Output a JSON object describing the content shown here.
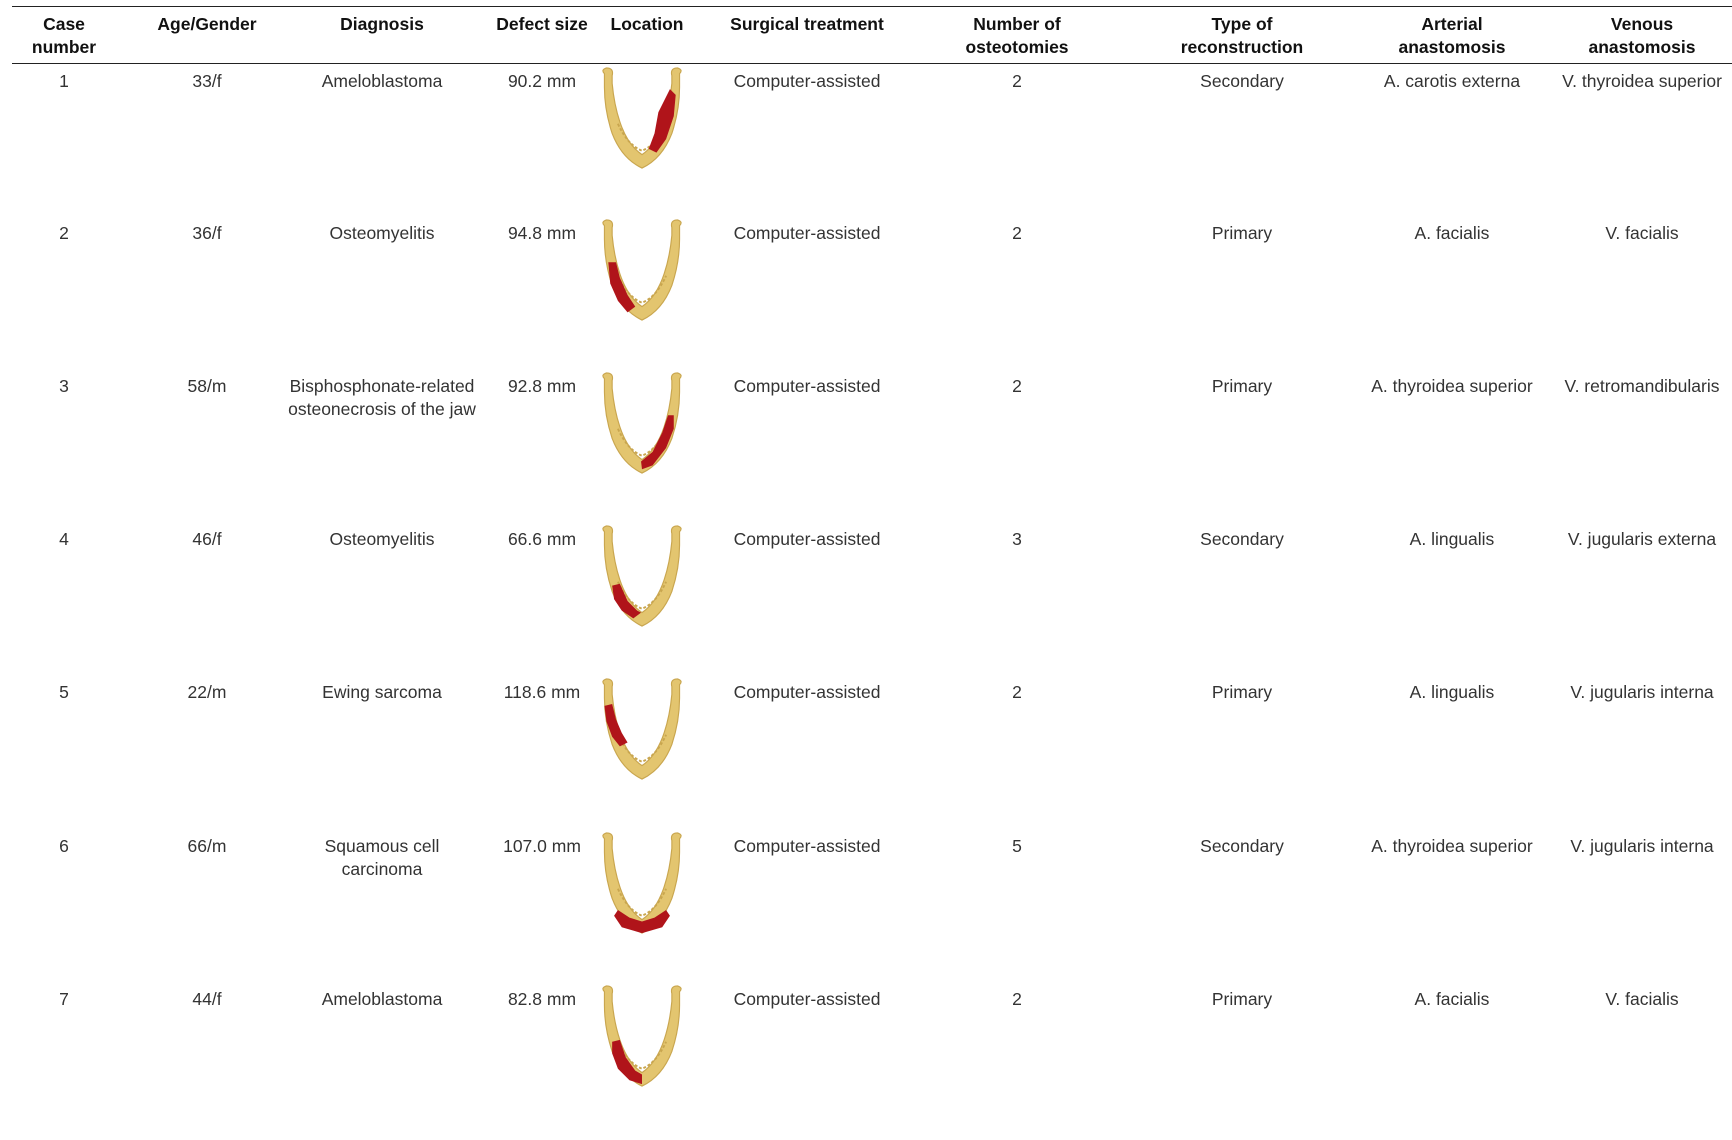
{
  "table": {
    "headers": [
      [
        "Case",
        "number"
      ],
      [
        "Age/Gender"
      ],
      [
        "Diagnosis"
      ],
      [
        "Defect size"
      ],
      [
        "Location"
      ],
      [
        "Surgical treatment"
      ],
      [
        "Number of",
        "osteotomies"
      ],
      [
        "Type of",
        "reconstruction"
      ],
      [
        "Arterial",
        "anastomosis"
      ],
      [
        "Venous",
        "anastomosis"
      ]
    ],
    "rows": [
      {
        "case": "1",
        "age_gender": "33/f",
        "diagnosis": [
          "Ameloblastoma"
        ],
        "defect_size": "90.2 mm",
        "location": "right-body",
        "surgical": "Computer-assisted",
        "osteotomies": "2",
        "reconstruction": "Secondary",
        "arterial": "A. carotis externa",
        "venous": "V. thyroidea superior"
      },
      {
        "case": "2",
        "age_gender": "36/f",
        "diagnosis": [
          "Osteomyelitis"
        ],
        "defect_size": "94.8 mm",
        "location": "left-body",
        "surgical": "Computer-assisted",
        "osteotomies": "2",
        "reconstruction": "Primary",
        "arterial": "A. facialis",
        "venous": "V. facialis"
      },
      {
        "case": "3",
        "age_gender": "58/m",
        "diagnosis": [
          "Bisphosphonate-related",
          "osteonecrosis of the jaw"
        ],
        "defect_size": "92.8 mm",
        "location": "right-body-to-midline",
        "surgical": "Computer-assisted",
        "osteotomies": "2",
        "reconstruction": "Primary",
        "arterial": "A. thyroidea superior",
        "venous": "V. retromandibularis"
      },
      {
        "case": "4",
        "age_gender": "46/f",
        "diagnosis": [
          "Osteomyelitis"
        ],
        "defect_size": "66.6 mm",
        "location": "left-body-lower",
        "surgical": "Computer-assisted",
        "osteotomies": "3",
        "reconstruction": "Secondary",
        "arterial": "A. lingualis",
        "venous": "V. jugularis externa"
      },
      {
        "case": "5",
        "age_gender": "22/m",
        "diagnosis": [
          "Ewing sarcoma"
        ],
        "defect_size": "118.6 mm",
        "location": "left-ramus-angle",
        "surgical": "Computer-assisted",
        "osteotomies": "2",
        "reconstruction": "Primary",
        "arterial": "A. lingualis",
        "venous": "V. jugularis interna"
      },
      {
        "case": "6",
        "age_gender": "66/m",
        "diagnosis": [
          "Squamous cell",
          "carcinoma"
        ],
        "defect_size": "107.0 mm",
        "location": "anterior-symphysis",
        "surgical": "Computer-assisted",
        "osteotomies": "5",
        "reconstruction": "Secondary",
        "arterial": "A. thyroidea superior",
        "venous": "V. jugularis interna"
      },
      {
        "case": "7",
        "age_gender": "44/f",
        "diagnosis": [
          "Ameloblastoma"
        ],
        "defect_size": "82.8 mm",
        "location": "left-body-to-midline",
        "surgical": "Computer-assisted",
        "osteotomies": "2",
        "reconstruction": "Primary",
        "arterial": "A. facialis",
        "venous": "V. facialis"
      }
    ]
  },
  "colors": {
    "bone": "#e3c56f",
    "bone_shadow": "#c9a64f",
    "defect": "#b0141a",
    "rule": "#222222"
  }
}
